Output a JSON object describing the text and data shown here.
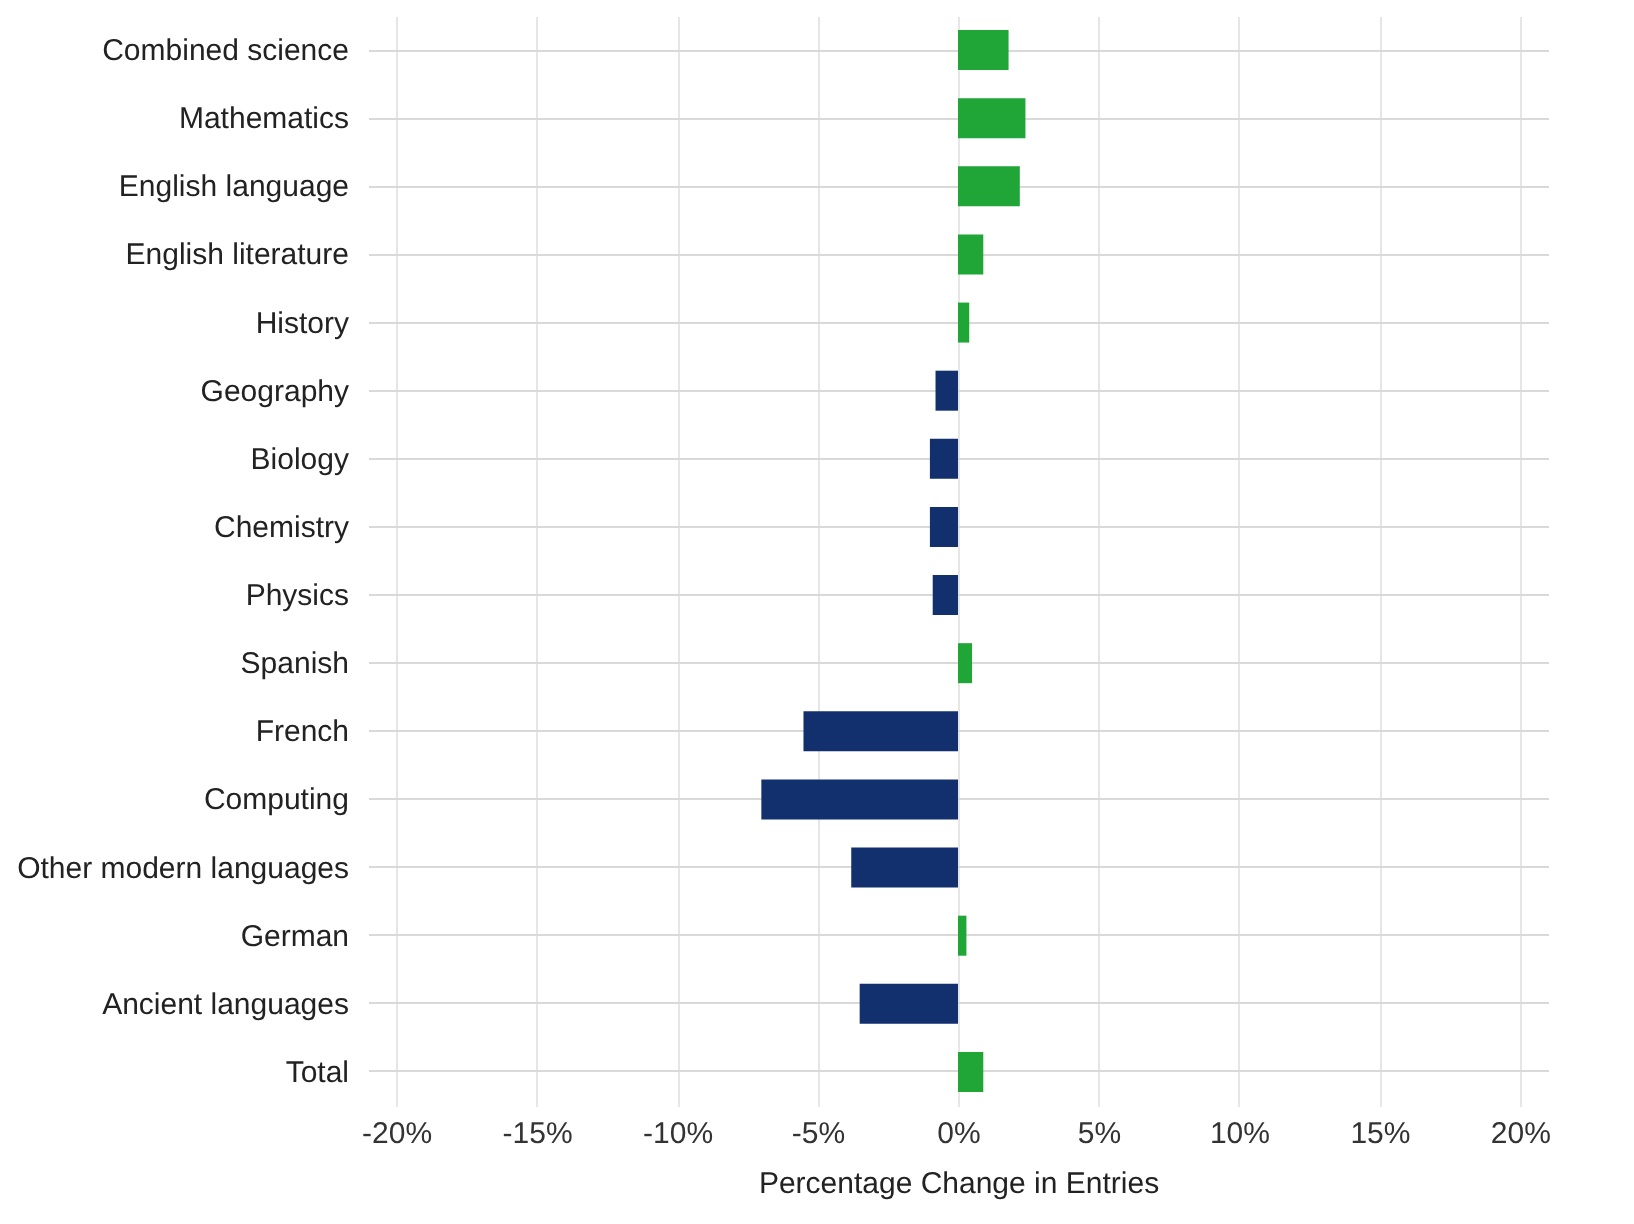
{
  "chart_data": {
    "type": "bar",
    "orientation": "horizontal",
    "xlabel": "Percentage Change in Entries",
    "categories": [
      "Combined science",
      "Mathematics",
      "English language",
      "English literature",
      "History",
      "Geography",
      "Biology",
      "Chemistry",
      "Physics",
      "Spanish",
      "French",
      "Computing",
      "Other modern languages",
      "German",
      "Ancient languages",
      "Total"
    ],
    "values": [
      1.8,
      2.4,
      2.2,
      0.9,
      0.4,
      -0.8,
      -1.0,
      -1.0,
      -0.9,
      0.5,
      -5.5,
      -7.0,
      -3.8,
      0.3,
      -3.5,
      0.9
    ],
    "colors": [
      "#1fa637",
      "#1fa637",
      "#1fa637",
      "#1fa637",
      "#1fa637",
      "#12306e",
      "#12306e",
      "#12306e",
      "#12306e",
      "#1fa637",
      "#12306e",
      "#12306e",
      "#12306e",
      "#1fa637",
      "#12306e",
      "#1fa637"
    ],
    "xlim": [
      -21,
      21
    ],
    "xticks": [
      {
        "value": -20,
        "label": "-20%"
      },
      {
        "value": -15,
        "label": "-15%"
      },
      {
        "value": -10,
        "label": "-10%"
      },
      {
        "value": -5,
        "label": "-5%"
      },
      {
        "value": 0,
        "label": "0%"
      },
      {
        "value": 5,
        "label": "5%"
      },
      {
        "value": 10,
        "label": "10%"
      },
      {
        "value": 15,
        "label": "15%"
      },
      {
        "value": 20,
        "label": "20%"
      }
    ],
    "grid": true
  }
}
